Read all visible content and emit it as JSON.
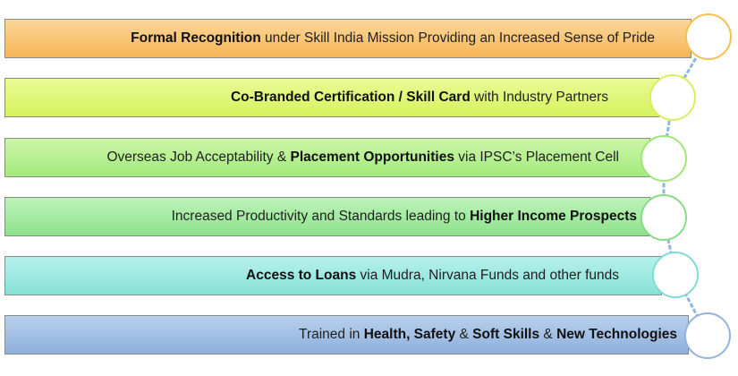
{
  "items": [
    {
      "pre": "",
      "b1": "Formal Recognition",
      "mid1": " under Skill India Mission Providing an Increased Sense of Pride",
      "b2": "",
      "mid2": "",
      "b3": "",
      "post": ""
    },
    {
      "pre": "",
      "b1": "Co-Branded Certification / Skill Card",
      "mid1": " with Industry Partners",
      "b2": "",
      "mid2": "",
      "b3": "",
      "post": ""
    },
    {
      "pre": "Overseas Job Acceptability & ",
      "b1": "Placement Opportunities",
      "mid1": " via IPSC’s Placement Cell",
      "b2": "",
      "mid2": "",
      "b3": "",
      "post": ""
    },
    {
      "pre": "Increased Productivity  and Standards  leading to ",
      "b1": "Higher Income Prospects",
      "mid1": "",
      "b2": "",
      "mid2": "",
      "b3": "",
      "post": ""
    },
    {
      "pre": "",
      "b1": "Access to Loans",
      "mid1": " via Mudra, Nirvana Funds and other funds",
      "b2": "",
      "mid2": "",
      "b3": "",
      "post": ""
    },
    {
      "pre": "Trained in ",
      "b1": "Health, Safety",
      "mid1": " & ",
      "b2": "Soft Skills",
      "mid2": " & ",
      "b3": "New Technologies",
      "post": ""
    }
  ],
  "colors": {
    "bar_1": "#f7b557",
    "bar_2": "#d6f25d",
    "bar_3": "#a3ea7c",
    "bar_4": "#8ee28c",
    "bar_5": "#86e2d8",
    "bar_6": "#8fb0dc",
    "connector": "#8fb5e0",
    "border": "#8a8a8a"
  }
}
